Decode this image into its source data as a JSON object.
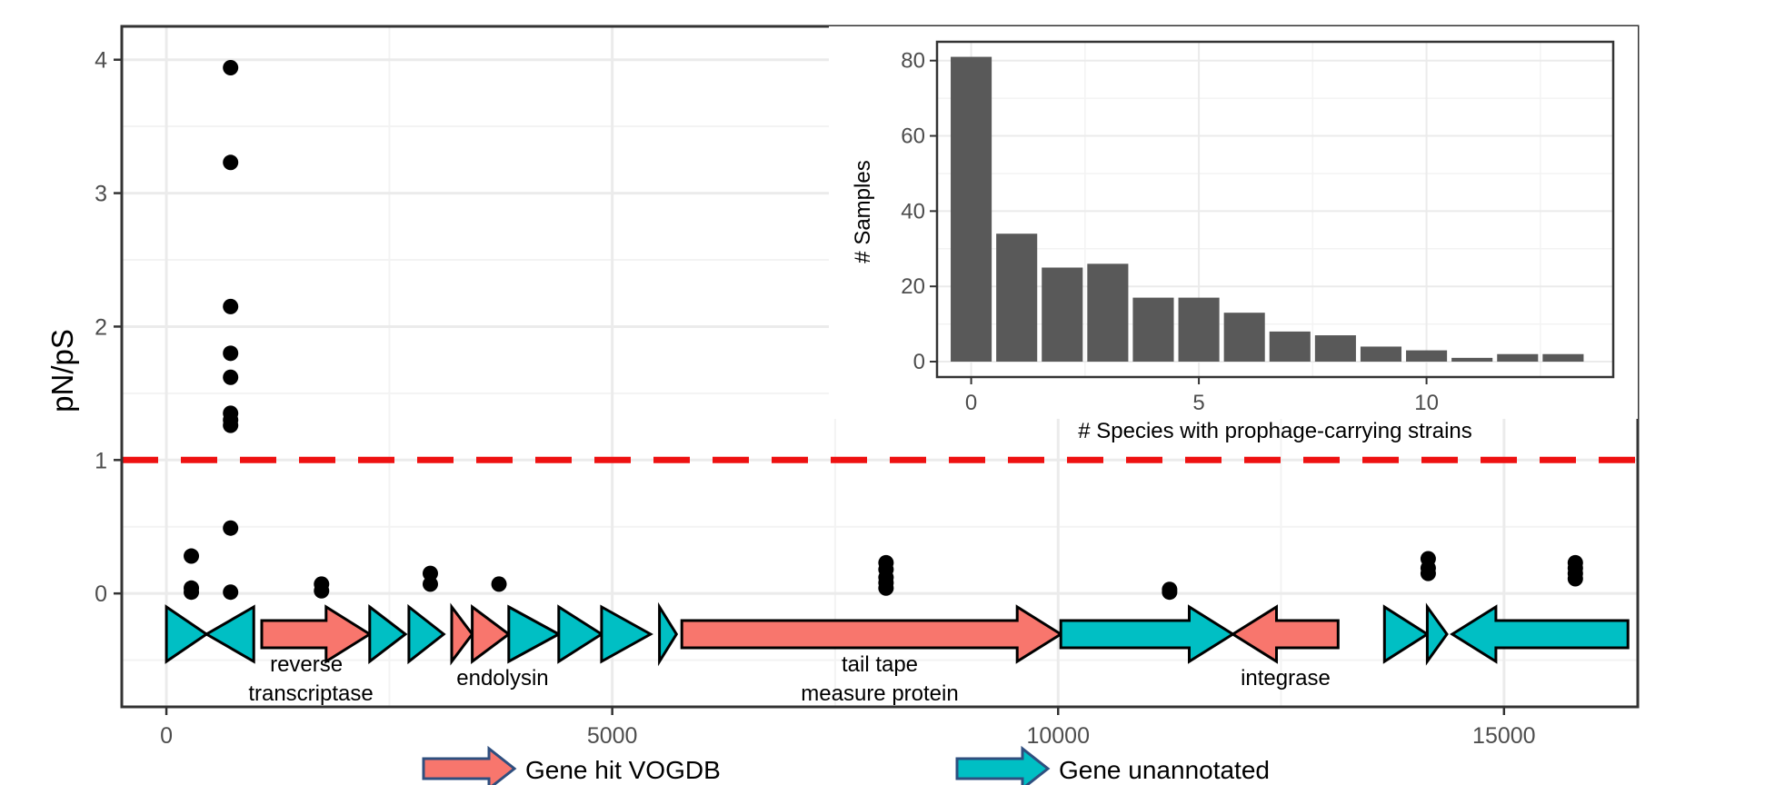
{
  "chart_data": [
    {
      "type": "scatter",
      "title": "",
      "xlabel": "",
      "ylabel": "pN/pS",
      "xlim": [
        -500,
        16500
      ],
      "ylim": [
        -0.85,
        4.25
      ],
      "x_ticks": [
        0,
        5000,
        10000,
        15000
      ],
      "x_tick_labels": [
        "0",
        "5000",
        "10000",
        "15000"
      ],
      "y_ticks": [
        0,
        1,
        2,
        3,
        4
      ],
      "y_tick_labels": [
        "0",
        "1",
        "2",
        "3",
        "4"
      ],
      "grid": true,
      "reference_line": {
        "y": 1,
        "style": "dashed",
        "color": "#ee1111"
      },
      "points": [
        {
          "x": 280,
          "y": 0.28
        },
        {
          "x": 280,
          "y": 0.04
        },
        {
          "x": 280,
          "y": 0.01
        },
        {
          "x": 720,
          "y": 3.94
        },
        {
          "x": 720,
          "y": 3.23
        },
        {
          "x": 720,
          "y": 2.15
        },
        {
          "x": 720,
          "y": 1.8
        },
        {
          "x": 720,
          "y": 1.62
        },
        {
          "x": 720,
          "y": 1.35
        },
        {
          "x": 720,
          "y": 1.3
        },
        {
          "x": 720,
          "y": 1.26
        },
        {
          "x": 720,
          "y": 0.49
        },
        {
          "x": 720,
          "y": 0.01
        },
        {
          "x": 1740,
          "y": 0.07
        },
        {
          "x": 1740,
          "y": 0.02
        },
        {
          "x": 2960,
          "y": 0.15
        },
        {
          "x": 2960,
          "y": 0.07
        },
        {
          "x": 3730,
          "y": 0.07
        },
        {
          "x": 8070,
          "y": 0.23
        },
        {
          "x": 8070,
          "y": 0.18
        },
        {
          "x": 8070,
          "y": 0.12
        },
        {
          "x": 8070,
          "y": 0.08
        },
        {
          "x": 8070,
          "y": 0.04
        },
        {
          "x": 11250,
          "y": 0.03
        },
        {
          "x": 11250,
          "y": 0.01
        },
        {
          "x": 14150,
          "y": 0.26
        },
        {
          "x": 14150,
          "y": 0.19
        },
        {
          "x": 14150,
          "y": 0.15
        },
        {
          "x": 15800,
          "y": 0.23
        },
        {
          "x": 15800,
          "y": 0.19
        },
        {
          "x": 15800,
          "y": 0.15
        },
        {
          "x": 15800,
          "y": 0.11
        }
      ],
      "genes": [
        {
          "start": 0,
          "end": 450,
          "strand": "+",
          "type": "unannotated"
        },
        {
          "start": 450,
          "end": 980,
          "strand": "-",
          "type": "unannotated"
        },
        {
          "start": 1070,
          "end": 2280,
          "strand": "+",
          "type": "vogdb"
        },
        {
          "start": 2280,
          "end": 2680,
          "strand": "+",
          "type": "unannotated"
        },
        {
          "start": 2720,
          "end": 3110,
          "strand": "+",
          "type": "unannotated"
        },
        {
          "start": 3200,
          "end": 3430,
          "strand": "+",
          "type": "vogdb"
        },
        {
          "start": 3430,
          "end": 3840,
          "strand": "+",
          "type": "vogdb"
        },
        {
          "start": 3840,
          "end": 4400,
          "strand": "+",
          "type": "unannotated"
        },
        {
          "start": 4400,
          "end": 4880,
          "strand": "+",
          "type": "unannotated"
        },
        {
          "start": 4880,
          "end": 5430,
          "strand": "+",
          "type": "unannotated"
        },
        {
          "start": 5530,
          "end": 5720,
          "strand": "+",
          "type": "unannotated"
        },
        {
          "start": 5780,
          "end": 10030,
          "strand": "+",
          "type": "vogdb"
        },
        {
          "start": 10030,
          "end": 11960,
          "strand": "+",
          "type": "unannotated"
        },
        {
          "start": 11960,
          "end": 13140,
          "strand": "-",
          "type": "vogdb"
        },
        {
          "start": 13660,
          "end": 14140,
          "strand": "+",
          "type": "unannotated"
        },
        {
          "start": 14140,
          "end": 14360,
          "strand": "+",
          "type": "unannotated"
        },
        {
          "start": 14420,
          "end": 16390,
          "strand": "-",
          "type": "unannotated"
        }
      ],
      "gene_labels": [
        {
          "x": 1570,
          "row": 1,
          "text": "reverse"
        },
        {
          "x": 1620,
          "row": 2,
          "text": "transcriptase"
        },
        {
          "x": 3770,
          "row": 1.5,
          "text": "endolysin"
        },
        {
          "x": 8000,
          "row": 1,
          "text": "tail tape"
        },
        {
          "x": 8000,
          "row": 2,
          "text": "measure protein"
        },
        {
          "x": 12550,
          "row": 1.5,
          "text": "integrase"
        }
      ],
      "legend": [
        {
          "label": "Gene hit VOGDB",
          "color": "#f8766d"
        },
        {
          "label": "Gene unannotated",
          "color": "#00bfc4"
        }
      ]
    },
    {
      "type": "bar",
      "title": "",
      "xlabel": "# Species with prophage-carrying strains",
      "ylabel": "# Samples",
      "categories": [
        0,
        1,
        2,
        3,
        4,
        5,
        6,
        7,
        8,
        9,
        10,
        11,
        12,
        13
      ],
      "values": [
        81,
        34,
        25,
        26,
        17,
        17,
        13,
        8,
        7,
        4,
        3,
        1,
        2,
        2
      ],
      "xlim": [
        -0.75,
        14.1
      ],
      "ylim": [
        -4.1,
        85
      ],
      "x_ticks": [
        0,
        5,
        10
      ],
      "x_tick_labels": [
        "0",
        "5",
        "10"
      ],
      "y_ticks": [
        0,
        20,
        40,
        60,
        80
      ],
      "y_tick_labels": [
        "0",
        "20",
        "40",
        "60",
        "80"
      ],
      "bar_color": "#595959",
      "grid": true
    }
  ]
}
